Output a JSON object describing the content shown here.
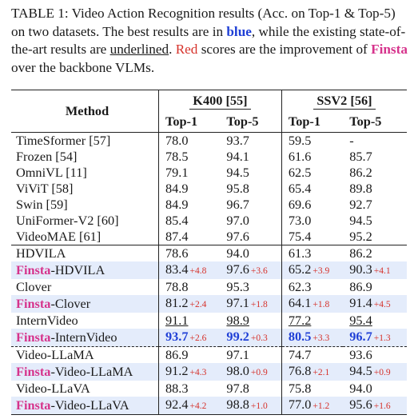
{
  "caption": {
    "p1": "TABLE 1: Video Action Recognition results (Acc. on Top-1 & Top-5) on two datasets. The best results are in ",
    "blue": "blue",
    "p2": ", while the existing state-of-the-art results are ",
    "underlined": "underlined",
    "p3": ". ",
    "red": "Red",
    "p4": " scores are the improvement of ",
    "finsta": "Finsta",
    "p5": " over the backbone VLMs."
  },
  "table": {
    "method_header": "Method",
    "groups": [
      "K400 [55]",
      "SSV2 [56]"
    ],
    "sub_headers": [
      "Top-1",
      "Top-5",
      "Top-1",
      "Top-5"
    ],
    "sota_rows": [
      {
        "method": "TimeSformer [57]",
        "k1": "78.0",
        "k5": "93.7",
        "s1": "59.5",
        "s5": "-"
      },
      {
        "method": "Frozen [54]",
        "k1": "78.5",
        "k5": "94.1",
        "s1": "61.6",
        "s5": "85.7"
      },
      {
        "method": "OmniVL [11]",
        "k1": "79.1",
        "k5": "94.5",
        "s1": "62.5",
        "s5": "86.2"
      },
      {
        "method": "ViViT [58]",
        "k1": "84.9",
        "k5": "95.8",
        "s1": "65.4",
        "s5": "89.8"
      },
      {
        "method": "Swin [59]",
        "k1": "84.9",
        "k5": "96.7",
        "s1": "69.6",
        "s5": "92.7"
      },
      {
        "method": "UniFormer-V2 [60]",
        "k1": "85.4",
        "k5": "97.0",
        "s1": "73.0",
        "s5": "94.5"
      },
      {
        "method": "VideoMAE [61]",
        "k1": "87.4",
        "k5": "97.6",
        "s1": "75.4",
        "s5": "95.2"
      }
    ],
    "finsta_prefix": "Finsta",
    "pair_rows": [
      {
        "base": {
          "method": "HDVILA",
          "k1": "78.6",
          "k5": "94.0",
          "s1": "61.3",
          "s5": "86.2"
        },
        "finsta": {
          "suffix": "-HDVILA",
          "k1": "83.4",
          "k1i": "+4.8",
          "k5": "97.6",
          "k5i": "+3.6",
          "s1": "65.2",
          "s1i": "+3.9",
          "s5": "90.3",
          "s5i": "+4.1"
        }
      },
      {
        "base": {
          "method": "Clover",
          "k1": "78.8",
          "k5": "95.3",
          "s1": "62.3",
          "s5": "86.9"
        },
        "finsta": {
          "suffix": "-Clover",
          "k1": "81.2",
          "k1i": "+2.4",
          "k5": "97.1",
          "k5i": "+1.8",
          "s1": "64.1",
          "s1i": "+1.8",
          "s5": "91.4",
          "s5i": "+4.5"
        }
      },
      {
        "base": {
          "method": "InternVideo",
          "k1": "91.1",
          "k5": "98.9",
          "s1": "77.2",
          "s5": "95.4"
        },
        "finsta": {
          "suffix": "-InternVideo",
          "k1": "93.7",
          "k1i": "+2.6",
          "k5": "99.2",
          "k5i": "+0.3",
          "s1": "80.5",
          "s1i": "+3.3",
          "s5": "96.7",
          "s5i": "+1.3"
        }
      },
      {
        "base": {
          "method": "Video-LLaMA",
          "k1": "86.9",
          "k5": "97.1",
          "s1": "74.7",
          "s5": "93.6"
        },
        "finsta": {
          "suffix": "-Video-LLaMA",
          "k1": "91.2",
          "k1i": "+4.3",
          "k5": "98.0",
          "k5i": "+0.9",
          "s1": "76.8",
          "s1i": "+2.1",
          "s5": "94.5",
          "s5i": "+0.9"
        }
      },
      {
        "base": {
          "method": "Video-LLaVA",
          "k1": "88.3",
          "k5": "97.8",
          "s1": "75.8",
          "s5": "94.0"
        },
        "finsta": {
          "suffix": "-Video-LLaVA",
          "k1": "92.4",
          "k1i": "+4.2",
          "k5": "98.8",
          "k5i": "+1.0",
          "s1": "77.0",
          "s1i": "+1.2",
          "s5": "95.6",
          "s5i": "+1.6"
        }
      }
    ]
  }
}
